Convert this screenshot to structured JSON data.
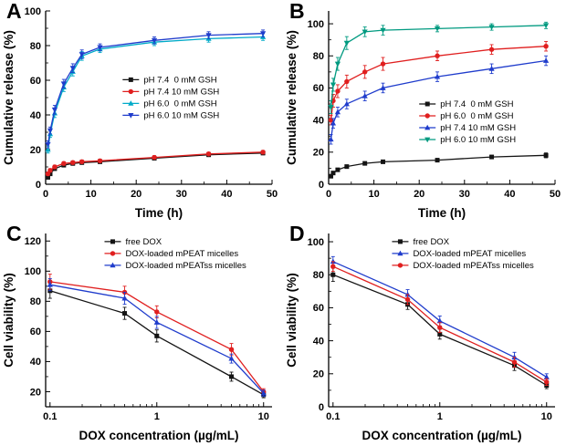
{
  "figure": {
    "background": "#ffffff",
    "panels": [
      {
        "letter": "A"
      },
      {
        "letter": "B"
      },
      {
        "letter": "C"
      },
      {
        "letter": "D"
      }
    ]
  },
  "chart_data": [
    {
      "type": "line",
      "panel": "A",
      "xlabel": "Time (h)",
      "ylabel": "Cumulative release (%)",
      "xscale": "linear",
      "xlim": [
        0,
        50
      ],
      "xticks": [
        0,
        10,
        20,
        30,
        40,
        50
      ],
      "xminor": [
        5,
        15,
        25,
        35,
        45
      ],
      "ylim": [
        0,
        100
      ],
      "yticks": [
        0,
        20,
        40,
        60,
        80,
        100
      ],
      "yminor": [
        10,
        30,
        50,
        70,
        90
      ],
      "grid": false,
      "legend": {
        "x": 0.34,
        "y": 0.36
      },
      "x": [
        0.5,
        1,
        2,
        4,
        6,
        8,
        12,
        24,
        36,
        48
      ],
      "series": [
        {
          "name": "pH 7.4  0 mM GSH",
          "color": "#141414",
          "marker": "square",
          "values": [
            4,
            6,
            9,
            11,
            12,
            12.5,
            13,
            15,
            17,
            18
          ],
          "err": [
            1,
            1,
            1,
            1,
            1,
            1,
            1,
            1,
            1,
            1
          ]
        },
        {
          "name": "pH 7.4 10 mM GSH",
          "color": "#e01f1f",
          "marker": "circle",
          "values": [
            6,
            8,
            10,
            12,
            12.5,
            13,
            13.5,
            15.5,
            17.5,
            18.5
          ],
          "err": [
            1,
            1,
            1,
            1,
            1,
            1,
            1,
            1,
            1,
            1
          ]
        },
        {
          "name": "pH 6.0  0 mM GSH",
          "color": "#00aac8",
          "marker": "triangle",
          "values": [
            20,
            29,
            41,
            56,
            65,
            74,
            78,
            82,
            84,
            85
          ],
          "err": [
            2,
            2,
            2.5,
            2.5,
            2.5,
            2.5,
            2,
            2,
            2,
            2
          ]
        },
        {
          "name": "pH 6.0 10 mM GSH",
          "color": "#1f3ccc",
          "marker": "triangle-down",
          "values": [
            23,
            31,
            43,
            58,
            67,
            75,
            79,
            83,
            86,
            87
          ],
          "err": [
            2,
            2,
            2.5,
            2.5,
            2.5,
            2.5,
            2,
            2,
            2,
            2
          ]
        }
      ]
    },
    {
      "type": "line",
      "panel": "B",
      "xlabel": "Time (h)",
      "ylabel": "Cumulative release (%)",
      "xscale": "linear",
      "xlim": [
        0,
        50
      ],
      "xticks": [
        0,
        10,
        20,
        30,
        40,
        50
      ],
      "xminor": [
        5,
        15,
        25,
        35,
        45
      ],
      "ylim": [
        0,
        108
      ],
      "yticks": [
        0,
        20,
        40,
        60,
        80,
        100
      ],
      "yminor": [
        10,
        30,
        50,
        70,
        90
      ],
      "grid": false,
      "legend": {
        "x": 0.4,
        "y": 0.5
      },
      "x": [
        0.5,
        1,
        2,
        4,
        8,
        12,
        24,
        36,
        48
      ],
      "series": [
        {
          "name": "pH 7.4  0 mM GSH",
          "color": "#141414",
          "marker": "square",
          "values": [
            5,
            7,
            9,
            11,
            13,
            14,
            15,
            17,
            18
          ],
          "err": [
            1,
            1,
            1,
            1,
            1,
            1,
            1,
            1,
            1.5
          ]
        },
        {
          "name": "pH 6.0  0 mM GSH",
          "color": "#e01f1f",
          "marker": "circle",
          "values": [
            40,
            52,
            58,
            64,
            70,
            75,
            80,
            84,
            86
          ],
          "err": [
            3,
            4,
            4,
            4,
            4,
            4,
            3,
            3,
            3
          ]
        },
        {
          "name": "pH 7.4 10 mM GSH",
          "color": "#1f3ccc",
          "marker": "triangle",
          "values": [
            28,
            38,
            45,
            50,
            55,
            60,
            67,
            72,
            77
          ],
          "err": [
            3,
            3,
            3,
            3,
            3,
            3,
            3,
            3,
            3
          ]
        },
        {
          "name": "pH 6.0 10 mM GSH",
          "color": "#009a80",
          "marker": "triangle-down",
          "values": [
            48,
            62,
            75,
            88,
            95,
            96,
            97,
            98,
            99
          ],
          "err": [
            4,
            4,
            4,
            4,
            3,
            3,
            2,
            2,
            2
          ]
        }
      ]
    },
    {
      "type": "line",
      "panel": "C",
      "xlabel": "DOX concentration (µg/mL)",
      "ylabel": "Cell viability (%)",
      "xscale": "log",
      "xlim": [
        0.091,
        12
      ],
      "xticks": [
        0.1,
        1,
        10
      ],
      "xminor": [
        0.2,
        0.3,
        0.4,
        0.5,
        0.6,
        0.7,
        0.8,
        0.9,
        2,
        3,
        4,
        5,
        6,
        7,
        8,
        9
      ],
      "ylim": [
        10,
        125
      ],
      "yticks": [
        20,
        40,
        60,
        80,
        100,
        120
      ],
      "yminor": [
        30,
        50,
        70,
        90,
        110
      ],
      "grid": false,
      "legend": {
        "x": 0.26,
        "y": 0.01
      },
      "x": [
        0.1,
        0.5,
        1,
        5,
        10
      ],
      "series": [
        {
          "name": "free DOX",
          "color": "#141414",
          "marker": "square",
          "values": [
            87,
            72,
            57,
            30,
            18
          ],
          "err": [
            5,
            4,
            4,
            3,
            2
          ]
        },
        {
          "name": "DOX-loaded mPEAT micelles",
          "color": "#e01f1f",
          "marker": "circle",
          "values": [
            93,
            86,
            73,
            48,
            20
          ],
          "err": [
            5,
            4,
            4,
            4,
            2
          ]
        },
        {
          "name": "DOX-loaded mPEATss micelles",
          "color": "#1f3ccc",
          "marker": "triangle",
          "values": [
            91,
            82,
            66,
            42,
            19
          ],
          "err": [
            4,
            4,
            4,
            3,
            2
          ]
        }
      ]
    },
    {
      "type": "line",
      "panel": "D",
      "xlabel": "DOX concentration (µg/mL)",
      "ylabel": "Cell viability (%)",
      "xscale": "log",
      "xlim": [
        0.091,
        12
      ],
      "xticks": [
        0.1,
        1,
        10
      ],
      "xminor": [
        0.2,
        0.3,
        0.4,
        0.5,
        0.6,
        0.7,
        0.8,
        0.9,
        2,
        3,
        4,
        5,
        6,
        7,
        8,
        9
      ],
      "ylim": [
        0,
        105
      ],
      "yticks": [
        0,
        20,
        40,
        60,
        80,
        100
      ],
      "yminor": [
        10,
        30,
        50,
        70,
        90
      ],
      "grid": false,
      "legend": {
        "x": 0.28,
        "y": 0.01
      },
      "x": [
        0.1,
        0.5,
        1,
        5,
        10
      ],
      "series": [
        {
          "name": "free DOX",
          "color": "#141414",
          "marker": "square",
          "values": [
            80,
            62,
            44,
            25,
            13
          ],
          "err": [
            4,
            3,
            3,
            3,
            2
          ]
        },
        {
          "name": "DOX-loaded mPEAT micelles",
          "color": "#1f3ccc",
          "marker": "triangle",
          "values": [
            88,
            68,
            52,
            30,
            18
          ],
          "err": [
            3,
            3,
            3,
            3,
            2
          ]
        },
        {
          "name": "DOX-loaded mPEATss micelles",
          "color": "#e01f1f",
          "marker": "circle",
          "values": [
            85,
            65,
            48,
            27,
            15
          ],
          "err": [
            3,
            3,
            3,
            3,
            2
          ]
        }
      ]
    }
  ]
}
